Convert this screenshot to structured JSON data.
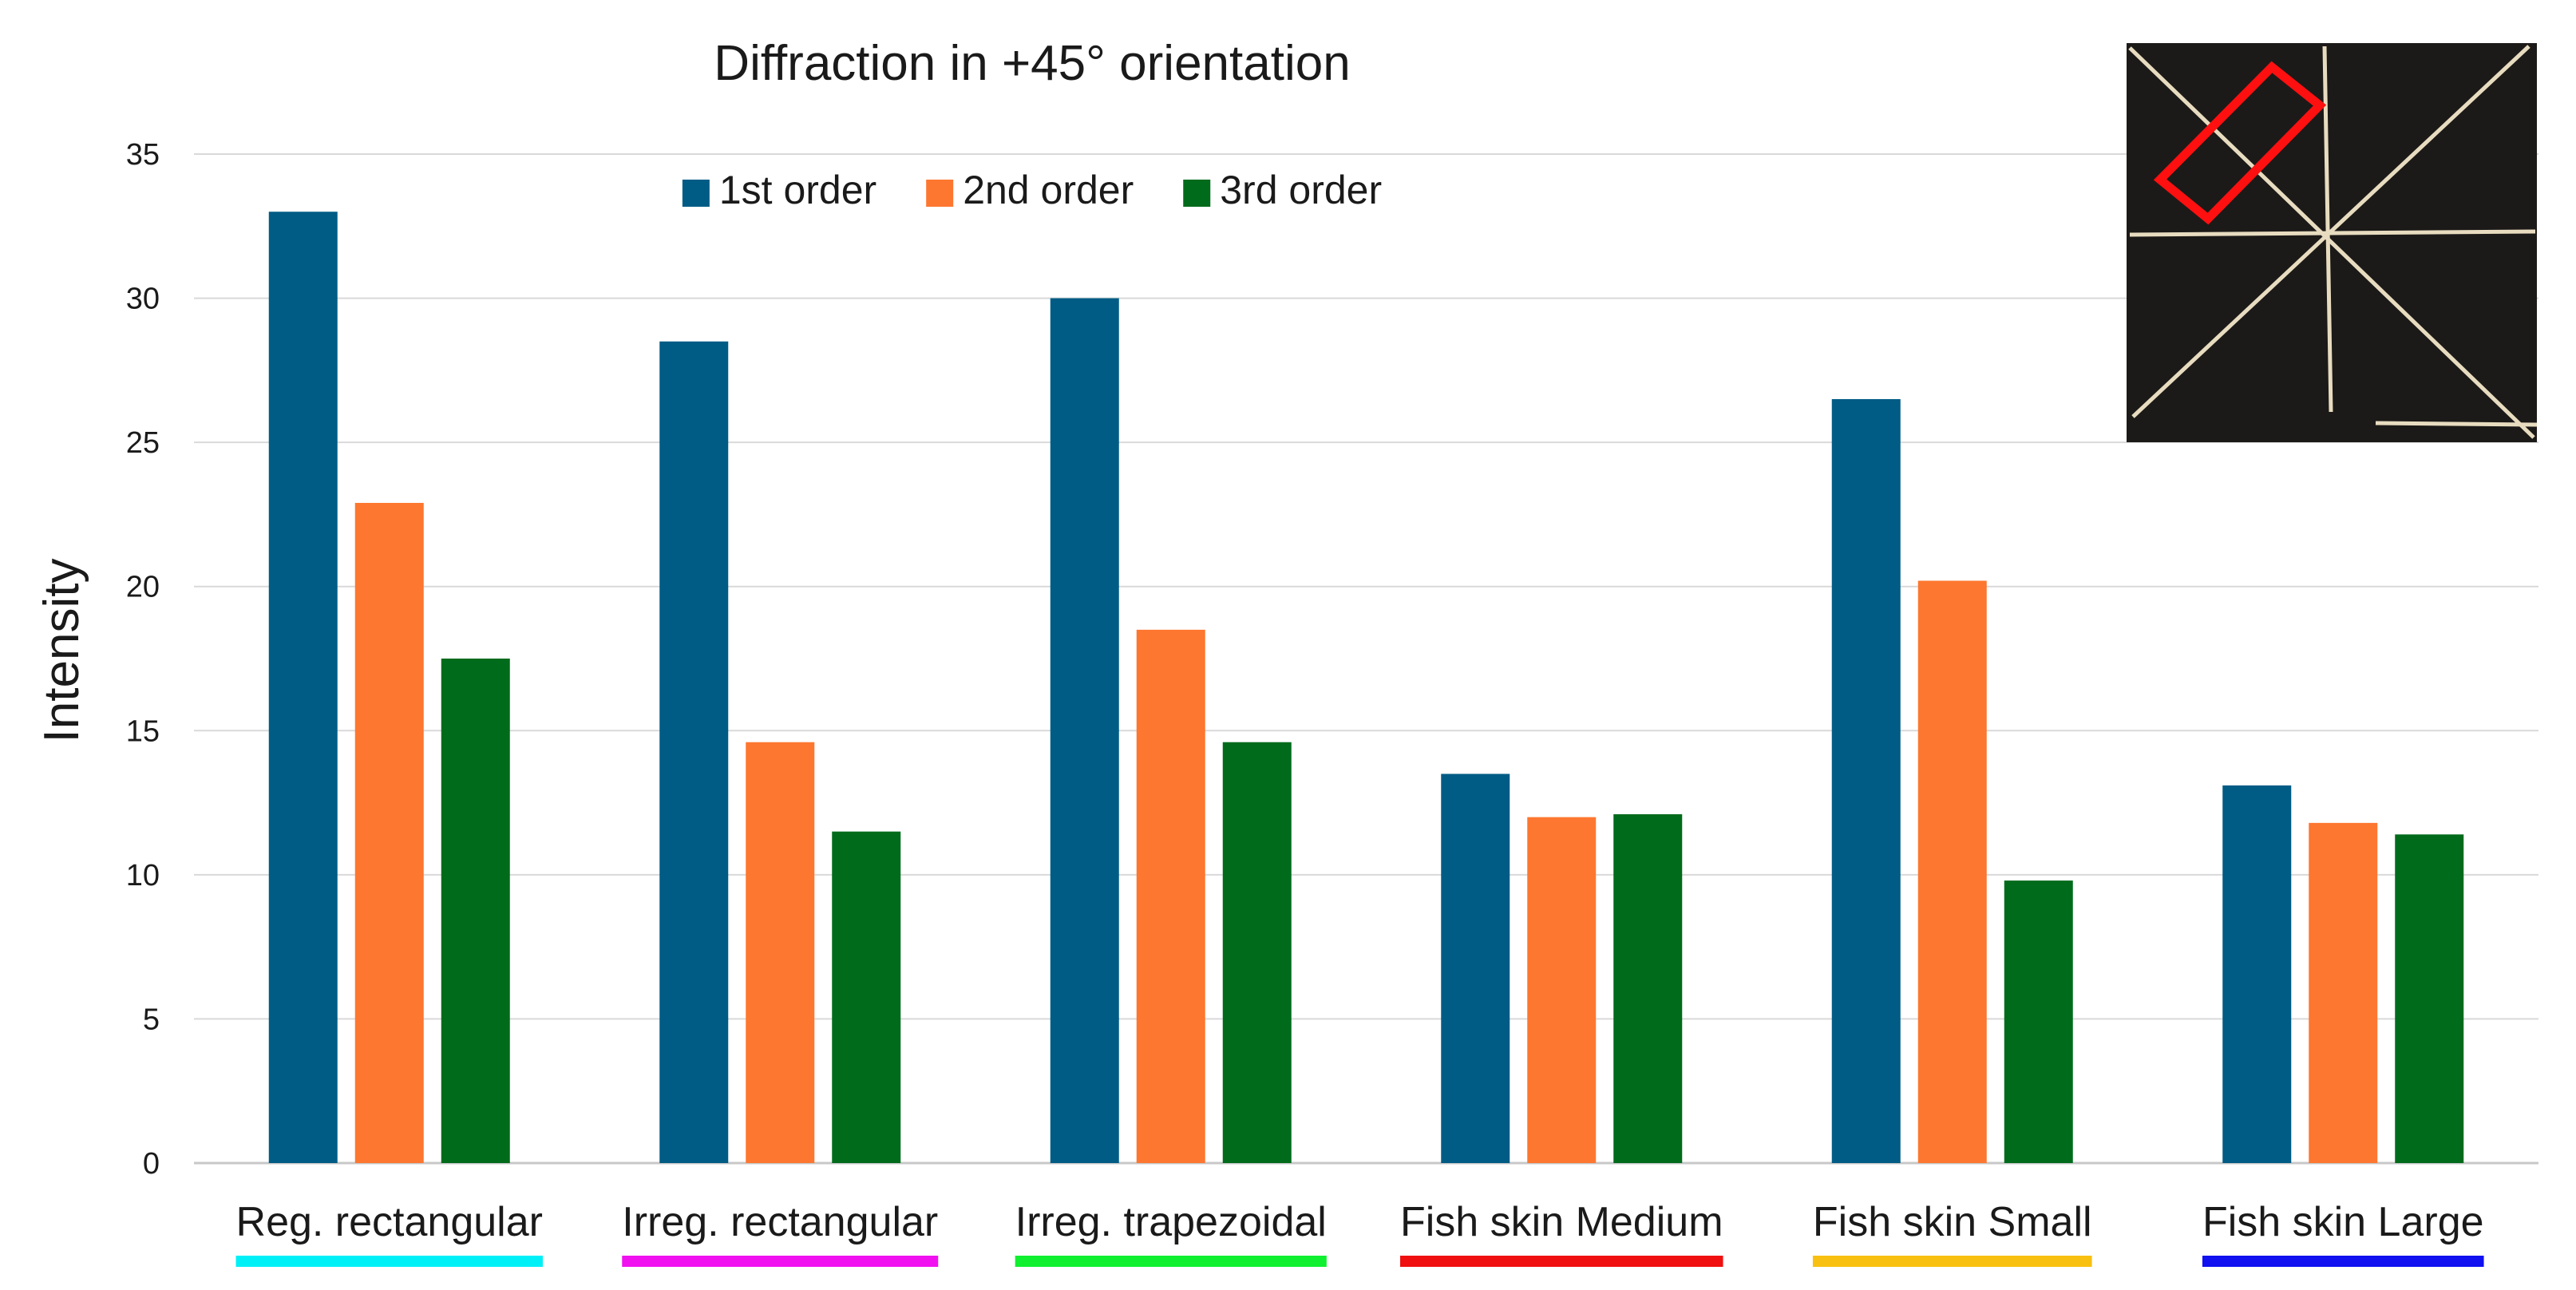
{
  "chart_data": {
    "type": "bar",
    "title": "Diffraction in +45° orientation",
    "xlabel": "",
    "ylabel": "Intensity",
    "ylim": [
      0,
      35
    ],
    "yticks": [
      0,
      5,
      10,
      15,
      20,
      25,
      30,
      35
    ],
    "grid": true,
    "legend_position": "top-center",
    "categories": [
      "Reg. rectangular",
      "Irreg. rectangular",
      "Irreg. trapezoidal",
      "Fish skin Medium",
      "Fish skin Small",
      "Fish skin Large"
    ],
    "category_underline_colors": [
      "#00f0f8",
      "#f010f0",
      "#10f030",
      "#f01010",
      "#f8c010",
      "#1010f0"
    ],
    "series": [
      {
        "name": "1st order",
        "color": "#005c85",
        "values": [
          33.0,
          28.5,
          30.0,
          13.5,
          26.5,
          13.1
        ]
      },
      {
        "name": "2nd order",
        "color": "#fd7730",
        "values": [
          22.9,
          14.6,
          18.5,
          12.0,
          20.2,
          11.8
        ]
      },
      {
        "name": "3rd order",
        "color": "#006b1b",
        "values": [
          17.5,
          11.5,
          14.6,
          12.1,
          9.8,
          11.4
        ]
      }
    ]
  },
  "inset": {
    "description_icon": "grid-photo-icon",
    "background_color": "#1c1a18",
    "line_color": "#e8dcc0",
    "highlight_color": "#ff1010"
  }
}
